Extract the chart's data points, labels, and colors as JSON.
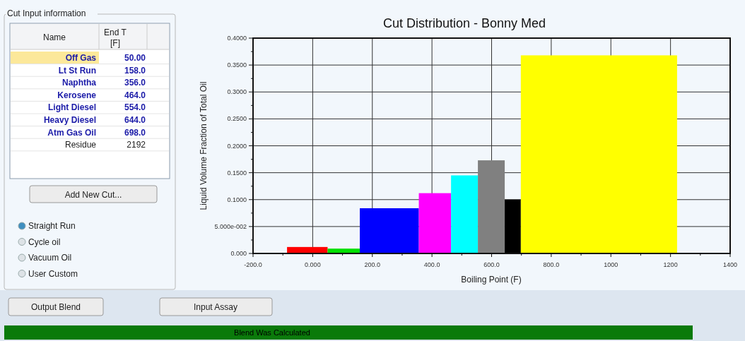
{
  "chart_data": {
    "type": "histogram",
    "title": "Cut Distribution - Bonny Med",
    "xlabel": "Boiling Point (F)",
    "ylabel": "Liquid Volume Fraction of Total Oil",
    "bins": [
      -200,
      -86,
      50,
      158,
      356,
      464,
      554,
      644,
      698,
      1222
    ],
    "values": [
      0.001,
      0.012,
      0.009,
      0.084,
      0.112,
      0.145,
      0.173,
      0.1,
      0.368
    ],
    "colors": [
      "#202020",
      "#ff0000",
      "#00e000",
      "#0000ff",
      "#ff00ff",
      "#00ffff",
      "#808080",
      "#000000",
      "#ffff00"
    ],
    "xlim": [
      -200,
      1400
    ],
    "xticks": [
      {
        "value": -200,
        "label": "-200.0"
      },
      {
        "value": -100,
        "label": null
      },
      {
        "value": 0,
        "label": "0.000"
      },
      {
        "value": 100,
        "label": null
      },
      {
        "value": 200,
        "label": "200.0"
      },
      {
        "value": 300,
        "label": null
      },
      {
        "value": 400,
        "label": "400.0"
      },
      {
        "value": 500,
        "label": null
      },
      {
        "value": 600,
        "label": "600.0"
      },
      {
        "value": 700,
        "label": null
      },
      {
        "value": 800,
        "label": "800.0"
      },
      {
        "value": 900,
        "label": null
      },
      1000,
      {
        "value": 1100,
        "label": null
      },
      1200,
      {
        "value": 1300,
        "label": null
      },
      1400
    ],
    "ylim": [
      0,
      0.4
    ],
    "yticks": [
      {
        "value": 0,
        "label": "0.000"
      },
      {
        "value": 0.025,
        "label": null
      },
      {
        "value": 0.05,
        "label": "5.000e-002"
      },
      {
        "value": 0.075,
        "label": null
      },
      {
        "value": 0.1,
        "label": "0.1000"
      },
      {
        "value": 0.125,
        "label": null
      },
      {
        "value": 0.15,
        "label": "0.1500"
      },
      {
        "value": 0.175,
        "label": null
      },
      {
        "value": 0.2,
        "label": "0.2000"
      },
      {
        "value": 0.225,
        "label": null
      },
      {
        "value": 0.25,
        "label": "0.2500"
      },
      {
        "value": 0.275,
        "label": null
      },
      {
        "value": 0.3,
        "label": "0.3000"
      },
      {
        "value": 0.325,
        "label": null
      },
      {
        "value": 0.35,
        "label": "0.3500"
      },
      {
        "value": 0.375,
        "label": null
      },
      {
        "value": 0.4,
        "label": "0.4000"
      }
    ],
    "grid": true,
    "annotations": [
      "Cut Input information",
      "Name",
      "End T [F]",
      "Off Gas",
      "50.00",
      "Lt St Run",
      "158.0",
      "Naphtha",
      "356.0",
      "Kerosene",
      "464.0",
      "Light Diesel",
      "554.0",
      "Heavy Diesel",
      "644.0",
      "Atm Gas Oil",
      "698.0",
      "Residue",
      "2192",
      "Add New Cut...",
      "Straight Run",
      "Cycle oil",
      "Vacuum Oil",
      "User Custom",
      "Output Blend",
      "Input Assay",
      "Blend Was Calculated"
    ]
  }
}
